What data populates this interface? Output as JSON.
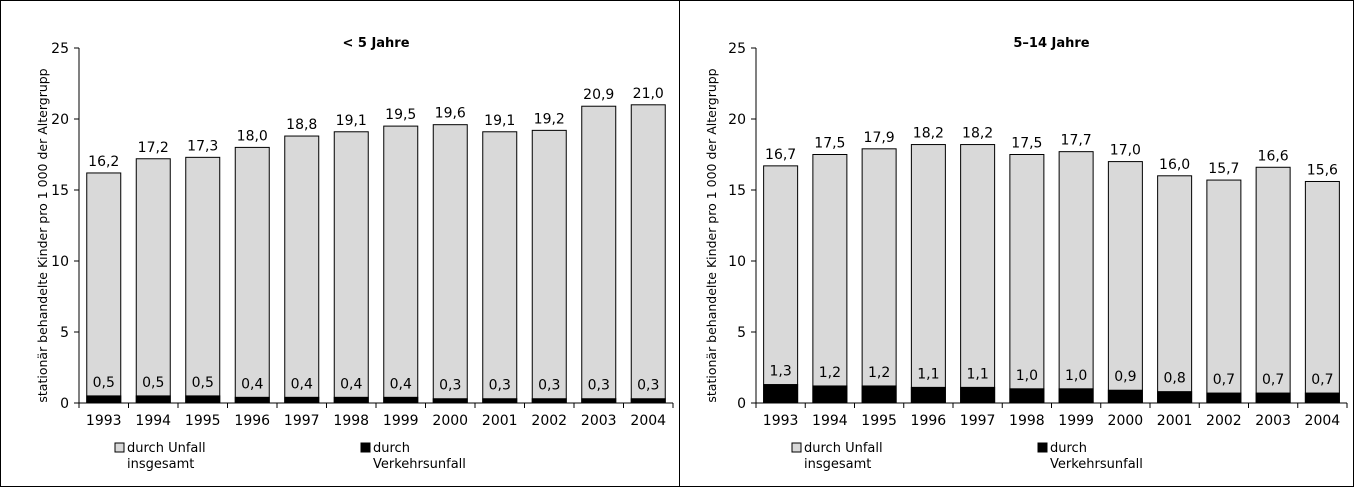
{
  "chart_data": [
    {
      "type": "bar",
      "title": "< 5 Jahre",
      "ylabel": "stationär behandelte Kinder pro 1 000 der Altergrupp",
      "ylim": [
        0,
        25
      ],
      "yticks": [
        0,
        5,
        10,
        15,
        20,
        25
      ],
      "categories": [
        "1993",
        "1994",
        "1995",
        "1996",
        "1997",
        "1998",
        "1999",
        "2000",
        "2001",
        "2002",
        "2003",
        "2004"
      ],
      "series": [
        {
          "name": "durch Unfall insgesamt",
          "color": "#d9d9d9",
          "values": [
            16.2,
            17.2,
            17.3,
            18.0,
            18.8,
            19.1,
            19.5,
            19.6,
            19.1,
            19.2,
            20.9,
            21.0
          ],
          "labels": [
            "16,2",
            "17,2",
            "17,3",
            "18,0",
            "18,8",
            "19,1",
            "19,5",
            "19,6",
            "19,1",
            "19,2",
            "20,9",
            "21,0"
          ]
        },
        {
          "name": "durch Verkehrsunfall",
          "color": "#000000",
          "values": [
            0.5,
            0.5,
            0.5,
            0.4,
            0.4,
            0.4,
            0.4,
            0.3,
            0.3,
            0.3,
            0.3,
            0.3
          ],
          "labels": [
            "0,5",
            "0,5",
            "0,5",
            "0,4",
            "0,4",
            "0,4",
            "0,4",
            "0,3",
            "0,3",
            "0,3",
            "0,3",
            "0,3"
          ]
        }
      ],
      "legend": [
        {
          "line1": "durch Unfall",
          "line2": "insgesamt",
          "color": "#d9d9d9"
        },
        {
          "line1": "durch",
          "line2": "Verkehrsunfall",
          "color": "#000000"
        }
      ],
      "legend_position": "bottom",
      "grid": false
    },
    {
      "type": "bar",
      "title": "5–14 Jahre",
      "ylabel": "stationär behandelte Kinder pro 1 000 der Altergrupp",
      "ylim": [
        0,
        25
      ],
      "yticks": [
        0,
        5,
        10,
        15,
        20,
        25
      ],
      "categories": [
        "1993",
        "1994",
        "1995",
        "1996",
        "1997",
        "1998",
        "1999",
        "2000",
        "2001",
        "2002",
        "2003",
        "2004"
      ],
      "series": [
        {
          "name": "durch Unfall insgesamt",
          "color": "#d9d9d9",
          "values": [
            16.7,
            17.5,
            17.9,
            18.2,
            18.2,
            17.5,
            17.7,
            17.0,
            16.0,
            15.7,
            16.6,
            15.6
          ],
          "labels": [
            "16,7",
            "17,5",
            "17,9",
            "18,2",
            "18,2",
            "17,5",
            "17,7",
            "17,0",
            "16,0",
            "15,7",
            "16,6",
            "15,6"
          ]
        },
        {
          "name": "durch Verkehrsunfall",
          "color": "#000000",
          "values": [
            1.3,
            1.2,
            1.2,
            1.1,
            1.1,
            1.0,
            1.0,
            0.9,
            0.8,
            0.7,
            0.7,
            0.7
          ],
          "labels": [
            "1,3",
            "1,2",
            "1,2",
            "1,1",
            "1,1",
            "1,0",
            "1,0",
            "0,9",
            "0,8",
            "0,7",
            "0,7",
            "0,7"
          ]
        }
      ],
      "legend": [
        {
          "line1": "durch Unfall",
          "line2": "insgesamt",
          "color": "#d9d9d9"
        },
        {
          "line1": "durch",
          "line2": "Verkehrsunfall",
          "color": "#000000"
        }
      ],
      "legend_position": "bottom",
      "grid": false
    }
  ]
}
